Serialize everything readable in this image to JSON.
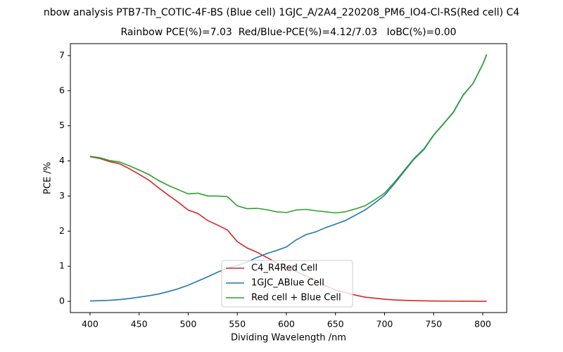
{
  "chart_data": {
    "type": "line",
    "title": "nbow analysis PTB7-Th_COTIC-4F-BS (Blue cell) 1GJC_A/2A4_220208_PM6_IO4-Cl-RS(Red cell) C4",
    "subtitle": "Rainbow PCE(%)=7.03  Red/Blue-PCE(%)=4.12/7.03   IoBC(%)=0.00",
    "x_label": "Dividing Wavelength /nm",
    "y_label": "PCE /%",
    "x": [
      400,
      410,
      420,
      430,
      440,
      450,
      460,
      470,
      480,
      490,
      500,
      510,
      520,
      530,
      540,
      550,
      560,
      570,
      580,
      590,
      600,
      610,
      620,
      630,
      640,
      650,
      660,
      670,
      680,
      690,
      700,
      710,
      720,
      730,
      740,
      750,
      760,
      770,
      780,
      790,
      800,
      804
    ],
    "series": [
      {
        "name": "C4_R4Red Cell",
        "color": "#d62728",
        "values": [
          4.12,
          4.07,
          3.98,
          3.92,
          3.78,
          3.62,
          3.45,
          3.23,
          3.02,
          2.82,
          2.6,
          2.5,
          2.3,
          2.17,
          2.03,
          1.7,
          1.52,
          1.4,
          1.25,
          1.1,
          0.98,
          0.85,
          0.72,
          0.6,
          0.45,
          0.32,
          0.25,
          0.18,
          0.12,
          0.09,
          0.06,
          0.04,
          0.03,
          0.02,
          0.015,
          0.01,
          0.008,
          0.006,
          0.005,
          0.004,
          0.003,
          0.003
        ]
      },
      {
        "name": "1GJC_ABlue Cell",
        "color": "#1f77b4",
        "values": [
          0.01,
          0.02,
          0.03,
          0.05,
          0.08,
          0.12,
          0.16,
          0.21,
          0.28,
          0.36,
          0.46,
          0.58,
          0.7,
          0.83,
          0.95,
          1.02,
          1.12,
          1.25,
          1.36,
          1.45,
          1.55,
          1.75,
          1.9,
          1.98,
          2.1,
          2.2,
          2.3,
          2.45,
          2.6,
          2.8,
          3.02,
          3.35,
          3.7,
          4.05,
          4.32,
          4.73,
          5.05,
          5.38,
          5.87,
          6.2,
          6.75,
          7.03
        ]
      },
      {
        "name": "Red cell + Blue Cell",
        "color": "#2ca02c",
        "values": [
          4.13,
          4.09,
          4.01,
          3.97,
          3.86,
          3.74,
          3.61,
          3.44,
          3.3,
          3.18,
          3.06,
          3.08,
          3.0,
          3.0,
          2.98,
          2.72,
          2.64,
          2.65,
          2.61,
          2.55,
          2.53,
          2.6,
          2.62,
          2.58,
          2.55,
          2.52,
          2.55,
          2.63,
          2.72,
          2.89,
          3.08,
          3.39,
          3.73,
          4.07,
          4.34,
          4.74,
          5.06,
          5.39,
          5.88,
          6.2,
          6.75,
          7.03
        ]
      }
    ],
    "xlim": [
      380,
      824.4
    ],
    "ylim": [
      -0.32,
      7.34
    ],
    "xticks": [
      400,
      450,
      500,
      550,
      600,
      650,
      700,
      750,
      800
    ],
    "yticks": [
      0,
      1,
      2,
      3,
      4,
      5,
      6,
      7
    ],
    "legend": "lower center"
  }
}
